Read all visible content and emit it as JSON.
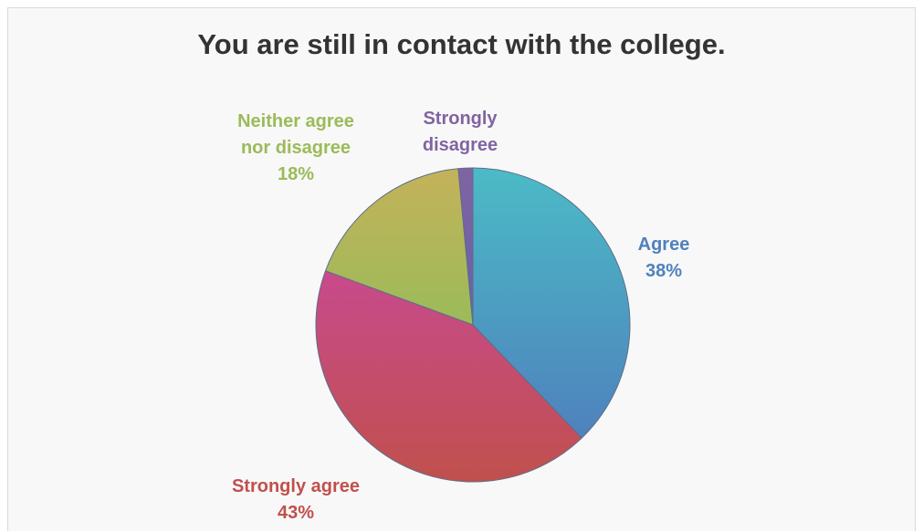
{
  "chart_data": {
    "type": "pie",
    "title": "You are still in contact with the college.",
    "slices": [
      {
        "category_lines": [
          "Agree"
        ],
        "percent_label": "38%",
        "value": 38,
        "color_top": "#4bbbc6",
        "color_bottom": "#4f81bd",
        "label_color": "#4f81bd",
        "label_position": "right"
      },
      {
        "category_lines": [
          "Strongly agree"
        ],
        "percent_label": "43%",
        "value": 43,
        "color_top": "#c84a8c",
        "color_bottom": "#c0504d",
        "label_color": "#c0504d",
        "label_position": "bottom-left"
      },
      {
        "category_lines": [
          "Neither agree",
          "nor disagree"
        ],
        "percent_label": "18%",
        "value": 18,
        "color_top": "#c4b25a",
        "color_bottom": "#9bbb59",
        "label_color": "#9bbb59",
        "label_position": "top-left"
      },
      {
        "category_lines": [
          "Strongly",
          "disagree"
        ],
        "percent_label": "",
        "value": 1.5,
        "color_top": "#8064a2",
        "color_bottom": "#6a5fa8",
        "label_color": "#8064a2",
        "label_position": "top"
      }
    ],
    "start_angle_deg": 0,
    "direction": "clockwise",
    "legend": "none"
  }
}
